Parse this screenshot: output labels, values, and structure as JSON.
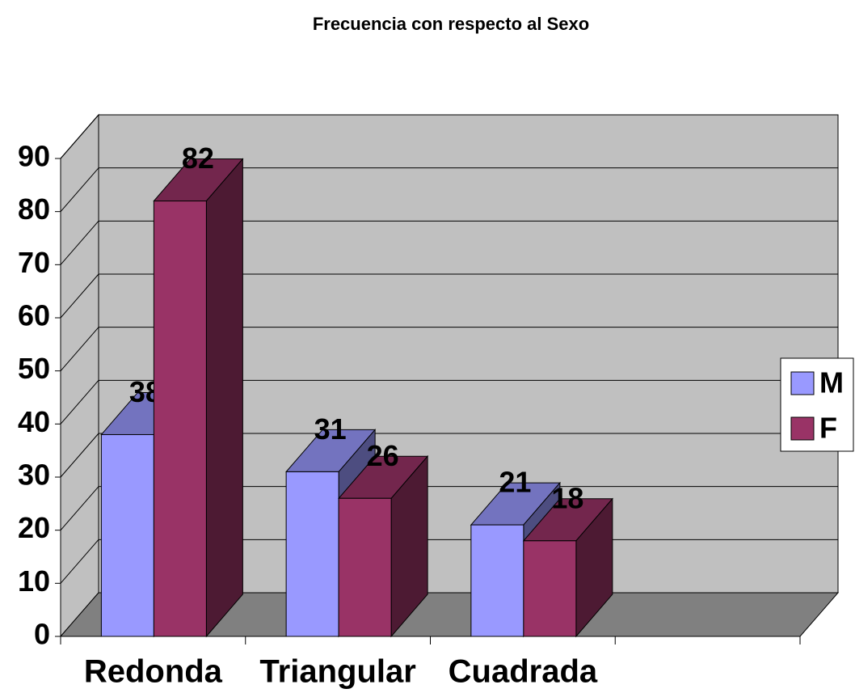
{
  "chart_data": {
    "type": "bar",
    "title": "Frecuencia con respecto al Sexo",
    "categories": [
      "Redonda",
      "Triangular",
      "Cuadrada",
      null
    ],
    "series": [
      {
        "name": "M",
        "color": "#9999ff",
        "values": [
          38,
          31,
          21,
          null
        ]
      },
      {
        "name": "F",
        "color": "#993366",
        "values": [
          82,
          26,
          18,
          null
        ]
      }
    ],
    "ylim": [
      0,
      90
    ],
    "yticks": [
      0,
      10,
      20,
      30,
      40,
      50,
      60,
      70,
      80,
      90
    ],
    "grid": true,
    "legend": "right"
  }
}
